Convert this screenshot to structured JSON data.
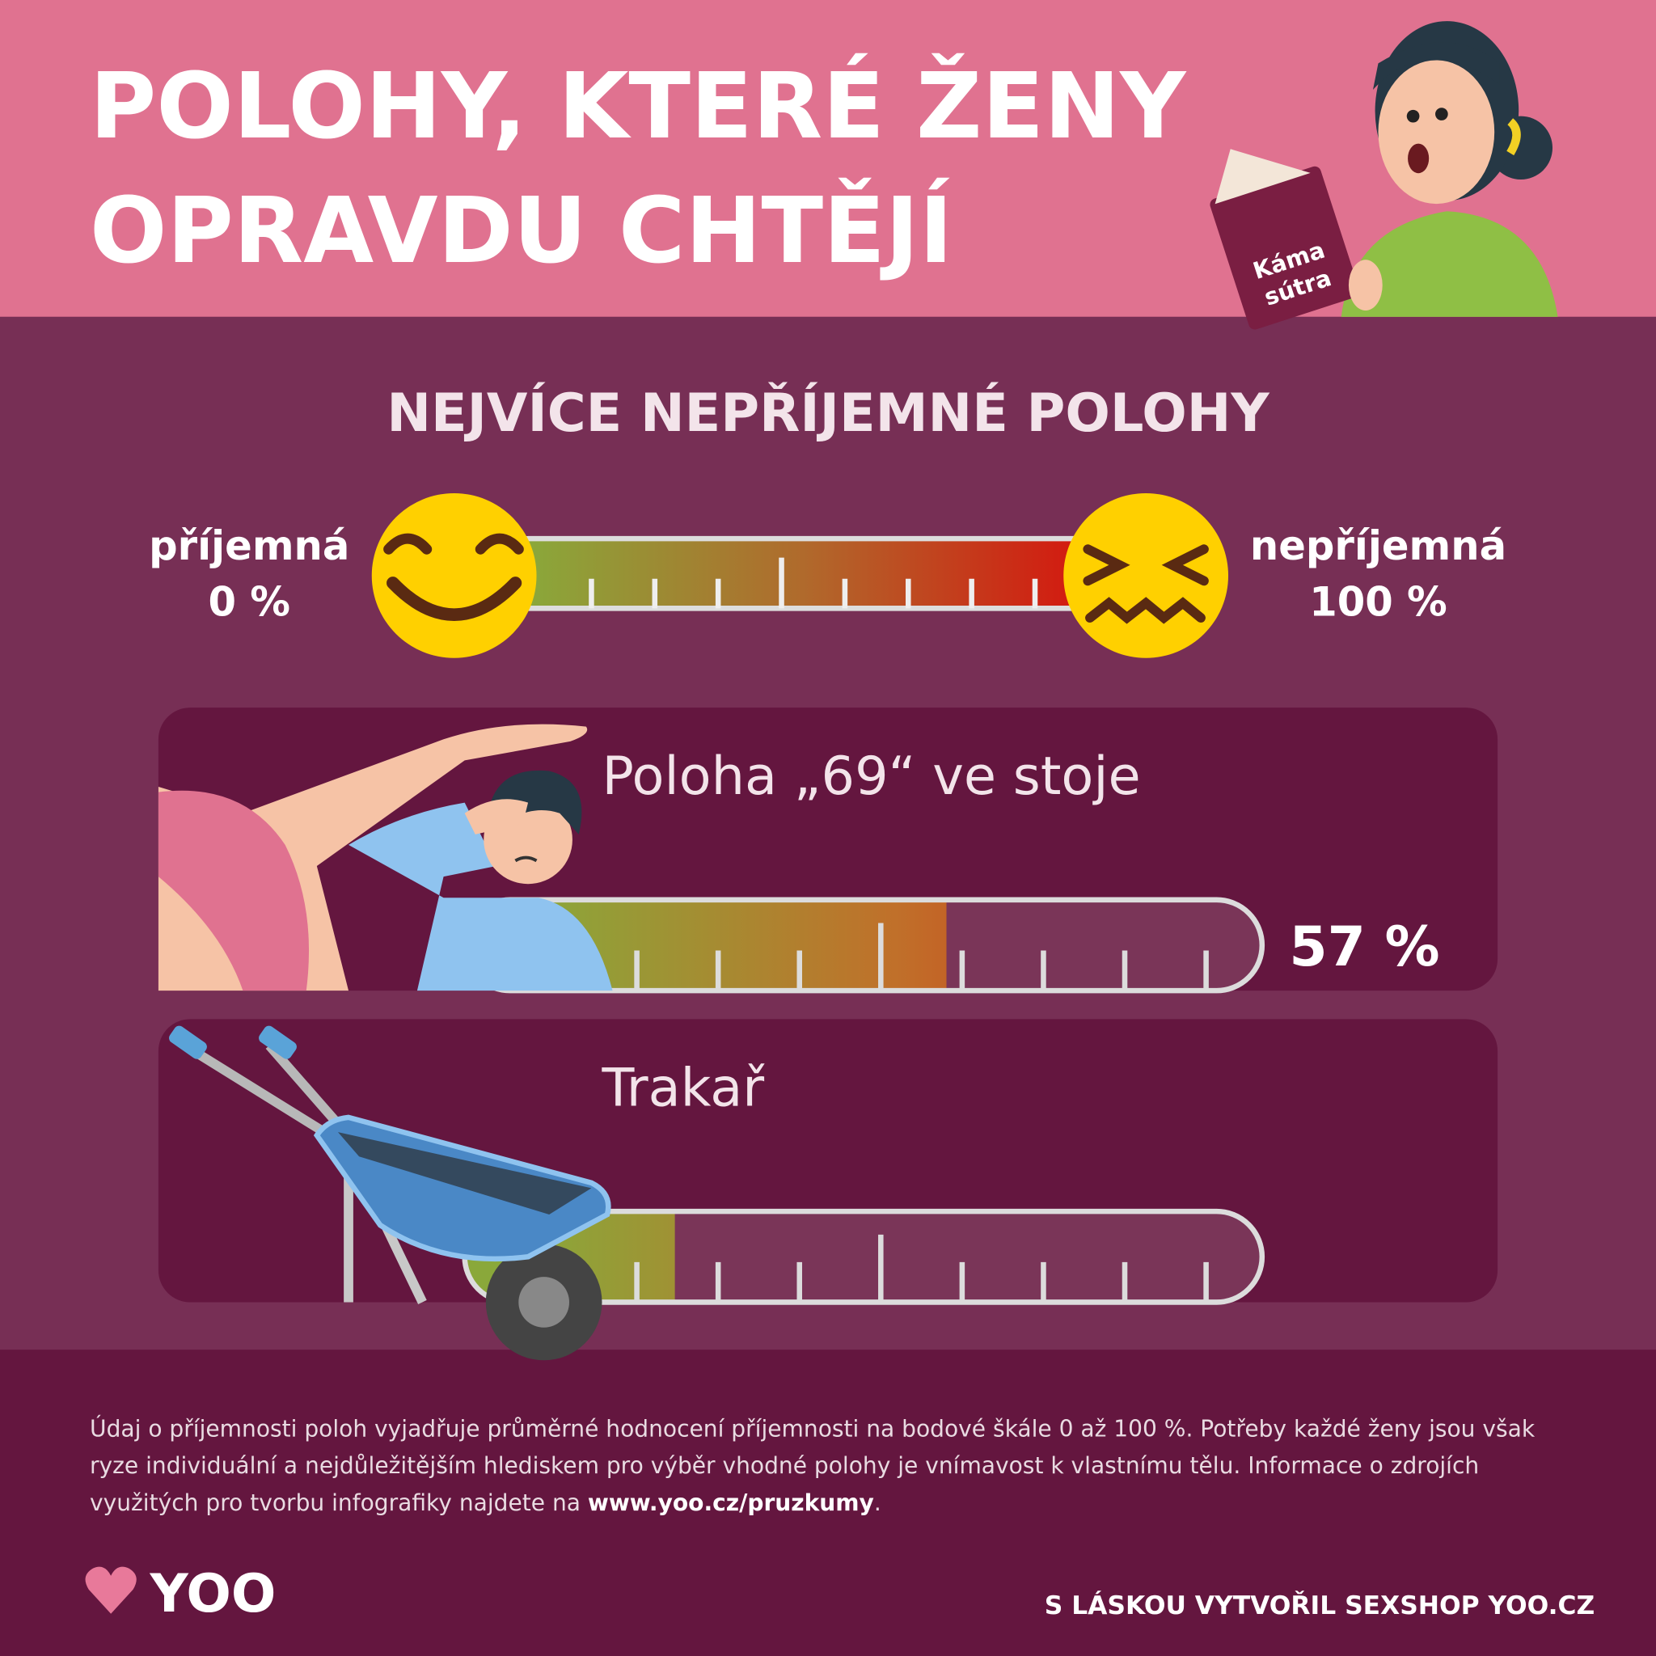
{
  "header": {
    "title_line1": "POLOHY, KTERÉ ŽENY",
    "title_line2": "OPRAVDU CHTĚJÍ",
    "book_line1": "Káma",
    "book_line2": "sútra"
  },
  "chart_data": {
    "type": "bar",
    "orientation": "horizontal",
    "title": "NEJVÍCE NEPŘÍJEMNÉ POLOHY",
    "scale_legend": {
      "low_label": "příjemná",
      "low_value": "0 %",
      "high_label": "nepříjemná",
      "high_value": "100 %"
    },
    "categories": [
      "Poloha „69“ ve stoje",
      "Trakař"
    ],
    "values": [
      57,
      20
    ],
    "value_labels": [
      "57 %",
      null
    ],
    "xlim": [
      0,
      100
    ],
    "track_color": "#7a3558",
    "gradient": [
      "#8aa83a",
      "#d31a10"
    ]
  },
  "footer": {
    "note_line1": "Údaj o příjemnosti poloh vyjadřuje průměrné hodnocení příjemnosti na bodové škále 0 až 100 %. Potřeby každé ženy jsou však",
    "note_line2": "ryze individuální a nejdůležitějším hlediskem pro výběr vhodné polohy je vnímavost k vlastnímu tělu. Informace o zdrojích",
    "note_line3a": "využitých pro tvorbu infografiky najdete na ",
    "note_link": "www.yoo.cz/pruzkumy",
    "note_line3b": ".",
    "logo": "YOO",
    "credit": "S LÁSKOU VYTVOŘIL SEXSHOP YOO.CZ"
  }
}
